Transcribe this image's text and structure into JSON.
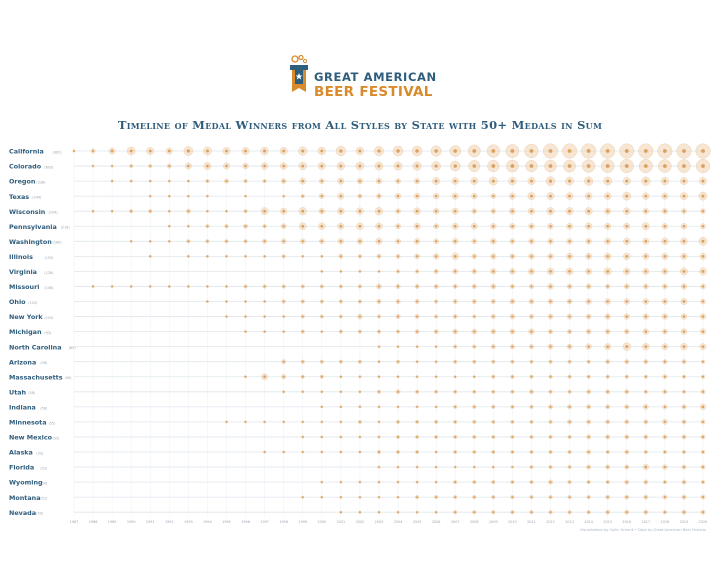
{
  "logo": {
    "line1": "GREAT AMERICAN",
    "line2": "BEER FESTIVAL",
    "mark": "festival-tap-handle-icon"
  },
  "credit": "Visualization by Collin Schenk  •  Data by Great American Beer Festival",
  "colors": {
    "title": "#2f5d7c",
    "state_label": "#2f5d7c",
    "count_label": "#9aa7b3",
    "dot": "#dba25f",
    "halo": "#f0d2b0",
    "line": "#dfe6ec",
    "accent": "#d98a2b"
  },
  "chart_data": {
    "type": "scatter",
    "title": "Timeline of Medal Winners from All Styles by State with 50+ Medals in Sum",
    "years": [
      1987,
      1988,
      1989,
      1990,
      1991,
      1992,
      1993,
      1994,
      1995,
      1996,
      1997,
      1998,
      1999,
      2000,
      2001,
      2002,
      2003,
      2004,
      2005,
      2006,
      2007,
      2008,
      2009,
      2010,
      2011,
      2012,
      2013,
      2014,
      2015,
      2016,
      2017,
      2018,
      2019,
      2020
    ],
    "series": [
      {
        "name": "California",
        "total": "(962)",
        "values": [
          1,
          3,
          6,
          10,
          8,
          6,
          12,
          10,
          8,
          8,
          9,
          8,
          11,
          9,
          14,
          9,
          13,
          15,
          15,
          16,
          18,
          22,
          24,
          26,
          28,
          32,
          34,
          38,
          44,
          48,
          46,
          40,
          36,
          40
        ]
      },
      {
        "name": "Colorado",
        "total": "(603)",
        "values": [
          0,
          1,
          1,
          2,
          2,
          3,
          6,
          8,
          6,
          5,
          7,
          7,
          9,
          8,
          9,
          10,
          10,
          10,
          11,
          12,
          15,
          19,
          20,
          22,
          20,
          21,
          22,
          24,
          25,
          27,
          27,
          25,
          25,
          28
        ]
      },
      {
        "name": "Oregon",
        "total": "(338)",
        "values": [
          0,
          0,
          1,
          1,
          1,
          1,
          1,
          2,
          3,
          2,
          2,
          4,
          6,
          4,
          6,
          5,
          5,
          4,
          5,
          8,
          7,
          8,
          10,
          9,
          8,
          12,
          10,
          11,
          10,
          8,
          11,
          9,
          8,
          8
        ]
      },
      {
        "name": "Texas",
        "total": "(249)",
        "values": [
          0,
          0,
          0,
          0,
          1,
          1,
          1,
          1,
          0,
          1,
          0,
          1,
          2,
          4,
          6,
          3,
          4,
          5,
          5,
          5,
          6,
          5,
          4,
          6,
          8,
          8,
          7,
          7,
          7,
          10,
          7,
          6,
          8,
          10
        ]
      },
      {
        "name": "Wisconsin",
        "total": "(234)",
        "values": [
          0,
          1,
          1,
          2,
          2,
          1,
          3,
          1,
          1,
          2,
          8,
          6,
          9,
          5,
          7,
          7,
          9,
          4,
          7,
          5,
          6,
          4,
          4,
          6,
          6,
          8,
          8,
          8,
          6,
          7,
          5,
          5,
          4,
          4
        ]
      },
      {
        "name": "Pennsylvania",
        "total": "(218)",
        "values": [
          0,
          0,
          0,
          0,
          0,
          1,
          1,
          2,
          2,
          3,
          2,
          4,
          8,
          7,
          6,
          7,
          7,
          4,
          6,
          4,
          6,
          6,
          5,
          5,
          5,
          5,
          6,
          7,
          6,
          6,
          8,
          5,
          5,
          4
        ]
      },
      {
        "name": "Washington",
        "total": "(180)",
        "values": [
          0,
          0,
          0,
          1,
          1,
          1,
          2,
          2,
          2,
          2,
          3,
          4,
          4,
          4,
          5,
          5,
          6,
          4,
          5,
          4,
          5,
          4,
          5,
          4,
          5,
          5,
          5,
          5,
          6,
          7,
          6,
          7,
          7,
          10
        ]
      },
      {
        "name": "Illinois",
        "total": "(153)",
        "values": [
          0,
          0,
          0,
          0,
          1,
          0,
          1,
          1,
          1,
          1,
          1,
          2,
          1,
          1,
          3,
          2,
          3,
          3,
          4,
          5,
          7,
          4,
          5,
          4,
          5,
          5,
          6,
          6,
          7,
          7,
          6,
          6,
          6,
          6
        ]
      },
      {
        "name": "Virginia",
        "total": "(128)",
        "values": [
          0,
          0,
          0,
          0,
          0,
          0,
          0,
          0,
          0,
          0,
          0,
          0,
          0,
          1,
          1,
          1,
          1,
          2,
          2,
          3,
          4,
          4,
          5,
          5,
          6,
          7,
          7,
          6,
          8,
          7,
          6,
          6,
          8,
          8
        ]
      },
      {
        "name": "Missouri",
        "total": "(108)",
        "values": [
          0,
          1,
          1,
          1,
          1,
          1,
          1,
          1,
          1,
          2,
          2,
          2,
          2,
          2,
          2,
          2,
          4,
          3,
          3,
          3,
          3,
          3,
          4,
          3,
          3,
          5,
          4,
          4,
          3,
          4,
          4,
          4,
          5,
          4
        ]
      },
      {
        "name": "Ohio",
        "total": "(103)",
        "values": [
          0,
          0,
          0,
          0,
          0,
          0,
          0,
          1,
          1,
          1,
          1,
          2,
          2,
          2,
          2,
          2,
          3,
          3,
          3,
          2,
          3,
          3,
          3,
          4,
          4,
          4,
          4,
          5,
          5,
          5,
          5,
          5,
          6,
          4
        ]
      },
      {
        "name": "New York",
        "total": "(103)",
        "values": [
          0,
          0,
          0,
          0,
          0,
          0,
          0,
          0,
          1,
          1,
          1,
          1,
          2,
          2,
          2,
          4,
          2,
          3,
          3,
          2,
          3,
          2,
          3,
          4,
          3,
          4,
          4,
          4,
          5,
          5,
          5,
          5,
          5,
          5
        ]
      },
      {
        "name": "Michigan",
        "total": "(93)",
        "values": [
          0,
          0,
          0,
          0,
          0,
          0,
          0,
          0,
          0,
          1,
          1,
          1,
          2,
          1,
          2,
          2,
          2,
          2,
          3,
          3,
          4,
          4,
          4,
          4,
          5,
          3,
          3,
          4,
          4,
          4,
          5,
          4,
          5,
          5
        ]
      },
      {
        "name": "North Carolina",
        "total": "(89)",
        "values": [
          0,
          0,
          0,
          0,
          0,
          0,
          0,
          0,
          0,
          0,
          0,
          0,
          0,
          0,
          0,
          0,
          1,
          1,
          1,
          1,
          2,
          2,
          3,
          3,
          3,
          4,
          4,
          5,
          6,
          9,
          7,
          6,
          7,
          6
        ]
      },
      {
        "name": "Arizona",
        "total": "(56)",
        "values": [
          0,
          0,
          0,
          0,
          0,
          0,
          0,
          0,
          0,
          0,
          0,
          3,
          2,
          2,
          2,
          2,
          1,
          2,
          1,
          1,
          2,
          2,
          2,
          2,
          2,
          2,
          2,
          2,
          3,
          3,
          3,
          3,
          3,
          2
        ]
      },
      {
        "name": "Massachusetts",
        "total": "(56)",
        "values": [
          0,
          0,
          0,
          0,
          0,
          0,
          0,
          0,
          0,
          1,
          6,
          3,
          2,
          2,
          1,
          1,
          1,
          1,
          1,
          1,
          1,
          1,
          2,
          2,
          2,
          2,
          2,
          2,
          2,
          2,
          2,
          3,
          2,
          2
        ]
      },
      {
        "name": "Utah",
        "total": "(58)",
        "values": [
          0,
          0,
          0,
          0,
          0,
          0,
          0,
          0,
          0,
          0,
          0,
          1,
          1,
          1,
          1,
          1,
          2,
          3,
          2,
          2,
          2,
          2,
          2,
          2,
          3,
          2,
          2,
          3,
          3,
          3,
          2,
          3,
          2,
          3
        ]
      },
      {
        "name": "Indiana",
        "total": "(56)",
        "values": [
          0,
          0,
          0,
          0,
          0,
          0,
          0,
          0,
          0,
          0,
          0,
          0,
          0,
          1,
          1,
          1,
          1,
          1,
          1,
          1,
          2,
          2,
          2,
          2,
          2,
          3,
          3,
          3,
          3,
          3,
          4,
          3,
          3,
          5
        ]
      },
      {
        "name": "Minnesota",
        "total": "(55)",
        "values": [
          0,
          0,
          0,
          0,
          0,
          0,
          0,
          0,
          1,
          1,
          1,
          1,
          1,
          1,
          1,
          2,
          1,
          2,
          2,
          2,
          2,
          2,
          2,
          2,
          2,
          2,
          3,
          3,
          3,
          3,
          3,
          4,
          3,
          3
        ]
      },
      {
        "name": "New Mexico",
        "total": "(55)",
        "values": [
          0,
          0,
          0,
          0,
          0,
          0,
          0,
          0,
          0,
          0,
          0,
          0,
          1,
          1,
          1,
          1,
          1,
          2,
          2,
          2,
          2,
          2,
          2,
          2,
          2,
          2,
          2,
          3,
          3,
          3,
          3,
          3,
          3,
          3
        ]
      },
      {
        "name": "Alaska",
        "total": "(53)",
        "values": [
          0,
          0,
          0,
          0,
          0,
          0,
          0,
          0,
          0,
          0,
          1,
          1,
          1,
          1,
          1,
          1,
          2,
          2,
          2,
          1,
          2,
          2,
          2,
          2,
          2,
          2,
          2,
          3,
          2,
          3,
          2,
          2,
          2,
          2
        ]
      },
      {
        "name": "Florida",
        "total": "(52)",
        "values": [
          0,
          0,
          0,
          0,
          0,
          0,
          0,
          0,
          0,
          0,
          0,
          0,
          0,
          0,
          0,
          0,
          1,
          1,
          1,
          1,
          1,
          1,
          1,
          1,
          2,
          2,
          2,
          3,
          3,
          3,
          5,
          4,
          3,
          3
        ]
      },
      {
        "name": "Wyoming",
        "total": "(50)",
        "values": [
          0,
          0,
          0,
          0,
          0,
          0,
          0,
          0,
          0,
          0,
          0,
          0,
          0,
          1,
          1,
          1,
          1,
          1,
          1,
          1,
          2,
          2,
          2,
          2,
          2,
          3,
          2,
          2,
          2,
          3,
          3,
          2,
          3,
          2
        ]
      },
      {
        "name": "Montana",
        "total": "(51)",
        "values": [
          0,
          0,
          0,
          0,
          0,
          0,
          0,
          0,
          0,
          0,
          0,
          0,
          1,
          1,
          1,
          1,
          1,
          1,
          2,
          2,
          2,
          2,
          2,
          2,
          2,
          2,
          2,
          2,
          3,
          3,
          3,
          3,
          3,
          3
        ]
      },
      {
        "name": "Nevada",
        "total": "(50)",
        "values": [
          0,
          0,
          0,
          0,
          0,
          0,
          0,
          0,
          0,
          0,
          0,
          0,
          0,
          0,
          1,
          1,
          1,
          1,
          1,
          1,
          2,
          2,
          2,
          2,
          2,
          2,
          2,
          2,
          3,
          3,
          3,
          2,
          3,
          3
        ]
      }
    ]
  }
}
